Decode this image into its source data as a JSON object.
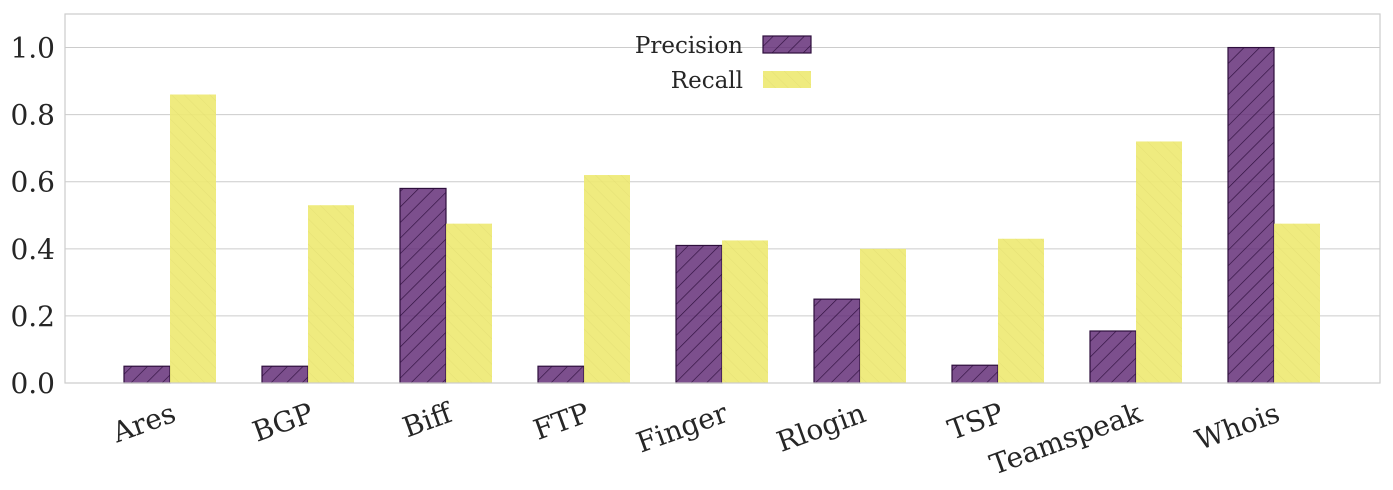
{
  "chart_data": {
    "type": "bar",
    "categories": [
      "Ares",
      "BGP",
      "Biff",
      "FTP",
      "Finger",
      "Rlogin",
      "TSP",
      "Teamspeak",
      "Whois"
    ],
    "series": [
      {
        "name": "Precision",
        "values": [
          0.05,
          0.05,
          0.58,
          0.05,
          0.41,
          0.25,
          0.053,
          0.155,
          1.0
        ],
        "color": "#5b2370",
        "hatch": "diagonal"
      },
      {
        "name": "Recall",
        "values": [
          0.86,
          0.53,
          0.475,
          0.62,
          0.425,
          0.4,
          0.43,
          0.72,
          0.475
        ],
        "color": "#ede971",
        "hatch": "light-diagonal"
      }
    ],
    "yticks": [
      "0.0",
      "0.2",
      "0.4",
      "0.6",
      "0.8",
      "1.0"
    ],
    "ylim": [
      0,
      1.1
    ],
    "xlabel": "",
    "ylabel": "",
    "title": "",
    "grid": "horizontal",
    "legend": {
      "position": "top-center"
    },
    "x_tick_rotation": 20
  }
}
